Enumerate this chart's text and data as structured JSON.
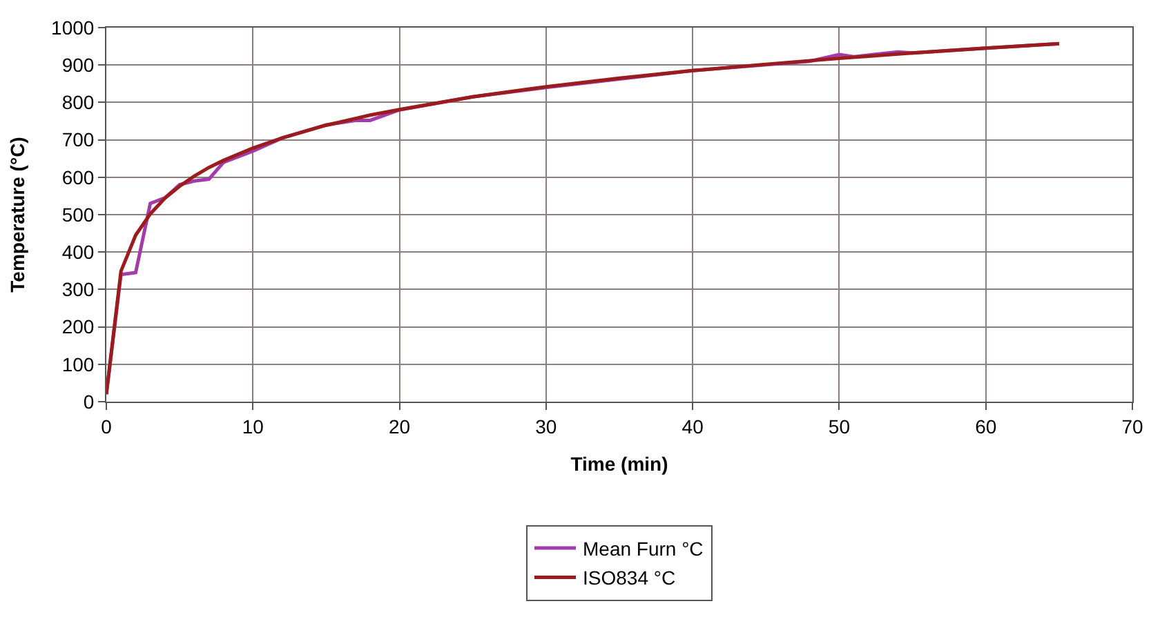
{
  "chart_data": {
    "type": "line",
    "xlabel": "Time (min)",
    "ylabel": "Temperature (°C)",
    "xlim": [
      0,
      70
    ],
    "xticks": [
      0,
      10,
      20,
      30,
      40,
      50,
      60,
      70
    ],
    "ylim": [
      0,
      1000
    ],
    "yticks": [
      0,
      100,
      200,
      300,
      400,
      500,
      600,
      700,
      800,
      900,
      1000
    ],
    "grid": true,
    "legend": "bottom",
    "marker": "none",
    "line_style": "solid",
    "series": [
      {
        "name": "Mean Furn °C",
        "color": "#a23ca8",
        "x": [
          0,
          1,
          2,
          3,
          4,
          5,
          6,
          7,
          8,
          10,
          12,
          15,
          17,
          18,
          20,
          25,
          30,
          40,
          48,
          50,
          51,
          54,
          55,
          60,
          65
        ],
        "values": [
          20,
          340,
          345,
          530,
          545,
          580,
          590,
          595,
          640,
          670,
          705,
          740,
          752,
          752,
          780,
          815,
          840,
          885,
          910,
          928,
          922,
          935,
          932,
          945,
          957
        ]
      },
      {
        "name": "ISO834 °C",
        "color": "#9b1c1c",
        "x": [
          0,
          1,
          2,
          3,
          4,
          5,
          6,
          7,
          8,
          10,
          12,
          15,
          18,
          20,
          25,
          30,
          35,
          40,
          45,
          50,
          55,
          60,
          65
        ],
        "values": [
          20,
          349,
          445,
          502,
          544,
          576,
          603,
          626,
          645,
          678,
          705,
          739,
          766,
          781,
          815,
          842,
          865,
          885,
          902,
          918,
          932,
          945,
          957
        ]
      }
    ]
  }
}
